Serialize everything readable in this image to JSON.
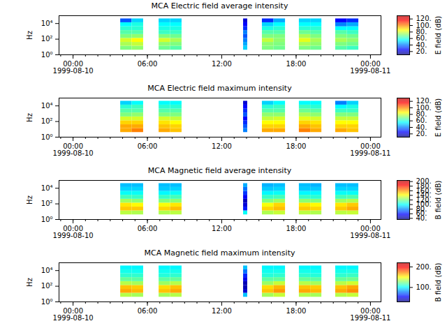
{
  "chart_data": [
    {
      "type": "heatmap",
      "title": "MCA  Electric field average intensity",
      "ylabel": "Hz",
      "colorbar_label": "E field (dB)",
      "xlim": [
        "1999-08-09T22:52",
        "1999-08-11T00:51"
      ],
      "xticks": [
        {
          "value": "1999-08-10T00:00",
          "label": "00:00\n1999-08-10"
        },
        {
          "value": "1999-08-10T06:00",
          "label": "06:00"
        },
        {
          "value": "1999-08-10T12:00",
          "label": "12:00"
        },
        {
          "value": "1999-08-10T18:00",
          "label": "18:00"
        },
        {
          "value": "1999-08-11T00:00",
          "label": "00:00\n1999-08-11"
        }
      ],
      "log": "y",
      "ylim": [
        1,
        100000
      ],
      "yticks": [
        {
          "value": 1,
          "label": "10⁰"
        },
        {
          "value": 100,
          "label": "10²"
        },
        {
          "value": 10000,
          "label": "10⁴"
        }
      ],
      "frequency_edges": [
        4,
        13,
        40,
        130,
        400,
        1300,
        4000,
        13000,
        40000
      ],
      "time_edges": [
        [
          "1999-08-10T03:50",
          "1999-08-10T04:45"
        ],
        [
          "1999-08-10T04:45",
          "1999-08-10T05:41"
        ],
        [
          "1999-08-10T06:56",
          "1999-08-10T07:51"
        ],
        [
          "1999-08-10T07:51",
          "1999-08-10T08:47"
        ],
        [
          "1999-08-10T13:45",
          "1999-08-10T14:05"
        ],
        [
          "1999-08-10T15:16",
          "1999-08-10T16:12"
        ],
        [
          "1999-08-10T16:12",
          "1999-08-10T17:08"
        ],
        [
          "1999-08-10T18:15",
          "1999-08-10T19:10"
        ],
        [
          "1999-08-10T19:10",
          "1999-08-10T20:04"
        ],
        [
          "1999-08-10T21:11",
          "1999-08-10T22:07"
        ],
        [
          "1999-08-10T22:07",
          "1999-08-10T23:03"
        ]
      ],
      "cells": [
        [
          70,
          75,
          80,
          70,
          65,
          60,
          55,
          35
        ],
        [
          72,
          78,
          85,
          72,
          65,
          60,
          58,
          50
        ],
        [
          68,
          72,
          80,
          70,
          62,
          58,
          55,
          50
        ],
        [
          65,
          70,
          75,
          68,
          62,
          58,
          55,
          50
        ],
        [
          50,
          45,
          40,
          35,
          40,
          30,
          25,
          20
        ],
        [
          70,
          72,
          78,
          70,
          65,
          58,
          50,
          30
        ],
        [
          68,
          70,
          72,
          70,
          65,
          60,
          55,
          45
        ],
        [
          70,
          75,
          82,
          75,
          68,
          60,
          55,
          50
        ],
        [
          68,
          72,
          75,
          70,
          65,
          60,
          55,
          50
        ],
        [
          65,
          70,
          75,
          70,
          65,
          55,
          40,
          25
        ],
        [
          62,
          68,
          72,
          68,
          62,
          55,
          45,
          30
        ]
      ],
      "colorbar_range": [
        10,
        130
      ],
      "colorbar_ticks": [
        {
          "value": 20,
          "label": "20."
        },
        {
          "value": 40,
          "label": "40."
        },
        {
          "value": 60,
          "label": "60."
        },
        {
          "value": 80,
          "label": "80."
        },
        {
          "value": 100,
          "label": "100."
        },
        {
          "value": 120,
          "label": "120."
        }
      ]
    },
    {
      "type": "heatmap",
      "title": "MCA  Electric field maximum intensity",
      "ylabel": "Hz",
      "colorbar_label": "E field (dB)",
      "xlim": [
        "1999-08-09T22:52",
        "1999-08-11T00:51"
      ],
      "xticks": [
        {
          "value": "1999-08-10T00:00",
          "label": "00:00\n1999-08-10"
        },
        {
          "value": "1999-08-10T06:00",
          "label": "06:00"
        },
        {
          "value": "1999-08-10T12:00",
          "label": "12:00"
        },
        {
          "value": "1999-08-10T18:00",
          "label": "18:00"
        },
        {
          "value": "1999-08-11T00:00",
          "label": "00:00\n1999-08-11"
        }
      ],
      "log": "y",
      "ylim": [
        1,
        100000
      ],
      "yticks": [
        {
          "value": 1,
          "label": "10⁰"
        },
        {
          "value": 100,
          "label": "10²"
        },
        {
          "value": 10000,
          "label": "10⁴"
        }
      ],
      "frequency_edges": [
        4,
        13,
        40,
        130,
        400,
        1300,
        4000,
        13000,
        40000
      ],
      "time_edges": [
        [
          "1999-08-10T03:50",
          "1999-08-10T04:45"
        ],
        [
          "1999-08-10T04:45",
          "1999-08-10T05:41"
        ],
        [
          "1999-08-10T06:56",
          "1999-08-10T07:51"
        ],
        [
          "1999-08-10T07:51",
          "1999-08-10T08:47"
        ],
        [
          "1999-08-10T13:45",
          "1999-08-10T14:05"
        ],
        [
          "1999-08-10T15:16",
          "1999-08-10T16:12"
        ],
        [
          "1999-08-10T16:12",
          "1999-08-10T17:08"
        ],
        [
          "1999-08-10T18:15",
          "1999-08-10T19:10"
        ],
        [
          "1999-08-10T19:10",
          "1999-08-10T20:04"
        ],
        [
          "1999-08-10T21:11",
          "1999-08-10T22:07"
        ],
        [
          "1999-08-10T22:07",
          "1999-08-10T23:03"
        ]
      ],
      "cells": [
        [
          95,
          95,
          90,
          80,
          70,
          65,
          60,
          50
        ],
        [
          100,
          95,
          90,
          80,
          72,
          65,
          62,
          55
        ],
        [
          95,
          92,
          88,
          80,
          70,
          65,
          60,
          55
        ],
        [
          92,
          90,
          85,
          78,
          70,
          65,
          60,
          55
        ],
        [
          40,
          35,
          30,
          25,
          35,
          30,
          25,
          20
        ],
        [
          95,
          90,
          85,
          78,
          72,
          65,
          60,
          50
        ],
        [
          95,
          90,
          85,
          80,
          72,
          65,
          62,
          55
        ],
        [
          100,
          95,
          90,
          82,
          75,
          68,
          62,
          55
        ],
        [
          95,
          92,
          88,
          80,
          72,
          66,
          60,
          55
        ],
        [
          95,
          90,
          85,
          78,
          70,
          62,
          55,
          40
        ],
        [
          92,
          90,
          85,
          78,
          70,
          62,
          58,
          50
        ]
      ],
      "colorbar_range": [
        10,
        130
      ],
      "colorbar_ticks": [
        {
          "value": 20,
          "label": "20."
        },
        {
          "value": 40,
          "label": "40."
        },
        {
          "value": 60,
          "label": "60."
        },
        {
          "value": 80,
          "label": "80."
        },
        {
          "value": 100,
          "label": "100."
        },
        {
          "value": 120,
          "label": "120."
        }
      ]
    },
    {
      "type": "heatmap",
      "title": "MCA  Magnetic field average intensity",
      "ylabel": "Hz",
      "colorbar_label": "B field (dB)",
      "xlim": [
        "1999-08-09T22:52",
        "1999-08-11T00:51"
      ],
      "xticks": [
        {
          "value": "1999-08-10T00:00",
          "label": "00:00\n1999-08-10"
        },
        {
          "value": "1999-08-10T06:00",
          "label": "06:00"
        },
        {
          "value": "1999-08-10T12:00",
          "label": "12:00"
        },
        {
          "value": "1999-08-10T18:00",
          "label": "18:00"
        },
        {
          "value": "1999-08-11T00:00",
          "label": "00:00\n1999-08-11"
        }
      ],
      "log": "y",
      "ylim": [
        1,
        100000
      ],
      "yticks": [
        {
          "value": 1,
          "label": "10⁰"
        },
        {
          "value": 100,
          "label": "10²"
        },
        {
          "value": 10000,
          "label": "10⁴"
        }
      ],
      "frequency_edges": [
        4,
        13,
        40,
        130,
        400,
        1300,
        4000,
        13000,
        40000
      ],
      "time_edges": [
        [
          "1999-08-10T03:50",
          "1999-08-10T04:45"
        ],
        [
          "1999-08-10T04:45",
          "1999-08-10T05:41"
        ],
        [
          "1999-08-10T06:56",
          "1999-08-10T07:51"
        ],
        [
          "1999-08-10T07:51",
          "1999-08-10T08:47"
        ],
        [
          "1999-08-10T13:45",
          "1999-08-10T14:05"
        ],
        [
          "1999-08-10T15:16",
          "1999-08-10T16:12"
        ],
        [
          "1999-08-10T16:12",
          "1999-08-10T17:08"
        ],
        [
          "1999-08-10T18:15",
          "1999-08-10T19:10"
        ],
        [
          "1999-08-10T19:10",
          "1999-08-10T20:04"
        ],
        [
          "1999-08-10T21:11",
          "1999-08-10T22:07"
        ],
        [
          "1999-08-10T22:07",
          "1999-08-10T23:03"
        ]
      ],
      "cells": [
        [
          130,
          150,
          145,
          125,
          110,
          100,
          92,
          88
        ],
        [
          128,
          150,
          142,
          122,
          108,
          100,
          92,
          88
        ],
        [
          128,
          148,
          140,
          120,
          108,
          98,
          90,
          88
        ],
        [
          130,
          152,
          145,
          122,
          110,
          100,
          92,
          88
        ],
        [
          100,
          60,
          50,
          45,
          55,
          65,
          75,
          85
        ],
        [
          128,
          148,
          140,
          120,
          108,
          98,
          90,
          86
        ],
        [
          132,
          152,
          148,
          125,
          110,
          100,
          92,
          88
        ],
        [
          130,
          150,
          145,
          122,
          108,
          98,
          90,
          88
        ],
        [
          128,
          148,
          142,
          120,
          106,
          98,
          90,
          86
        ],
        [
          130,
          150,
          145,
          125,
          110,
          100,
          92,
          88
        ],
        [
          132,
          155,
          150,
          128,
          112,
          100,
          92,
          88
        ]
      ],
      "colorbar_range": [
        35,
        205
      ],
      "colorbar_ticks": [
        {
          "value": 40,
          "label": "40."
        },
        {
          "value": 60,
          "label": "60."
        },
        {
          "value": 80,
          "label": "80."
        },
        {
          "value": 100,
          "label": "100."
        },
        {
          "value": 120,
          "label": "120."
        },
        {
          "value": 140,
          "label": "140."
        },
        {
          "value": 160,
          "label": "160."
        },
        {
          "value": 180,
          "label": "180."
        },
        {
          "value": 200,
          "label": "200."
        }
      ]
    },
    {
      "type": "heatmap",
      "title": "MCA  Magnetic field maximum intensity",
      "ylabel": "Hz",
      "colorbar_label": "B field (dB)",
      "xlim": [
        "1999-08-09T22:52",
        "1999-08-11T00:51"
      ],
      "xticks": [
        {
          "value": "1999-08-10T00:00",
          "label": "00:00\n1999-08-10"
        },
        {
          "value": "1999-08-10T06:00",
          "label": "06:00"
        },
        {
          "value": "1999-08-10T12:00",
          "label": "12:00"
        },
        {
          "value": "1999-08-10T18:00",
          "label": "18:00"
        },
        {
          "value": "1999-08-11T00:00",
          "label": "00:00\n1999-08-11"
        }
      ],
      "log": "y",
      "ylim": [
        1,
        100000
      ],
      "yticks": [
        {
          "value": 1,
          "label": "10⁰"
        },
        {
          "value": 100,
          "label": "10²"
        },
        {
          "value": 10000,
          "label": "10⁴"
        }
      ],
      "frequency_edges": [
        4,
        13,
        40,
        130,
        400,
        1300,
        4000,
        13000,
        40000
      ],
      "time_edges": [
        [
          "1999-08-10T03:50",
          "1999-08-10T04:45"
        ],
        [
          "1999-08-10T04:45",
          "1999-08-10T05:41"
        ],
        [
          "1999-08-10T06:56",
          "1999-08-10T07:51"
        ],
        [
          "1999-08-10T07:51",
          "1999-08-10T08:47"
        ],
        [
          "1999-08-10T13:45",
          "1999-08-10T14:05"
        ],
        [
          "1999-08-10T15:16",
          "1999-08-10T16:12"
        ],
        [
          "1999-08-10T16:12",
          "1999-08-10T17:08"
        ],
        [
          "1999-08-10T18:15",
          "1999-08-10T19:10"
        ],
        [
          "1999-08-10T19:10",
          "1999-08-10T20:04"
        ],
        [
          "1999-08-10T21:11",
          "1999-08-10T22:07"
        ],
        [
          "1999-08-10T22:07",
          "1999-08-10T23:03"
        ]
      ],
      "cells": [
        [
          135,
          165,
          160,
          135,
          120,
          110,
          105,
          100
        ],
        [
          132,
          162,
          158,
          132,
          118,
          110,
          104,
          100
        ],
        [
          132,
          160,
          155,
          130,
          118,
          108,
          104,
          100
        ],
        [
          135,
          165,
          160,
          135,
          120,
          110,
          105,
          100
        ],
        [
          90,
          45,
          40,
          40,
          50,
          60,
          75,
          90
        ],
        [
          132,
          160,
          155,
          130,
          118,
          108,
          104,
          100
        ],
        [
          138,
          168,
          162,
          138,
          120,
          110,
          105,
          100
        ],
        [
          135,
          165,
          160,
          135,
          120,
          110,
          105,
          100
        ],
        [
          132,
          162,
          158,
          132,
          118,
          108,
          104,
          100
        ],
        [
          135,
          165,
          160,
          135,
          120,
          110,
          105,
          100
        ],
        [
          138,
          170,
          165,
          140,
          122,
          112,
          106,
          100
        ]
      ],
      "colorbar_range": [
        30,
        220
      ],
      "colorbar_ticks": [
        {
          "value": 100,
          "label": "100."
        },
        {
          "value": 200,
          "label": "200."
        }
      ]
    }
  ]
}
